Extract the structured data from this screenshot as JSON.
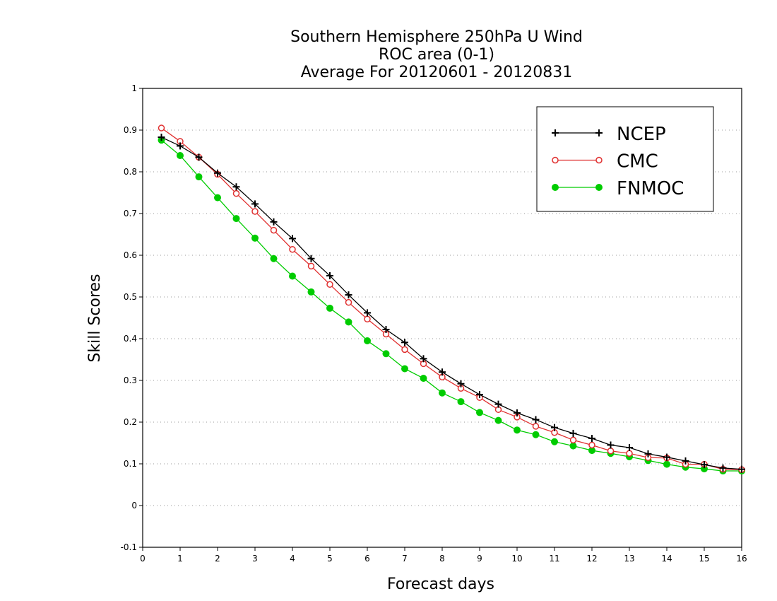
{
  "chart_data": {
    "type": "line",
    "title": [
      "Southern Hemisphere 250hPa U Wind",
      "ROC area (0-1)",
      "Average For 20120601 - 20120831"
    ],
    "xlabel": "Forecast days",
    "ylabel": "Skill Scores",
    "xlim": [
      0,
      16
    ],
    "ylim": [
      -0.1,
      1
    ],
    "xticks": [
      "0",
      "1",
      "2",
      "3",
      "4",
      "5",
      "6",
      "7",
      "8",
      "9",
      "10",
      "11",
      "12",
      "13",
      "14",
      "15",
      "16"
    ],
    "yticks": [
      "-0.1",
      "0",
      "0.1",
      "0.2",
      "0.3",
      "0.4",
      "0.5",
      "0.6",
      "0.7",
      "0.8",
      "0.9",
      "1"
    ],
    "grid": "horizontal dotted",
    "legend_position": "top-right",
    "x": [
      0.5,
      1,
      1.5,
      2,
      2.5,
      3,
      3.5,
      4,
      4.5,
      5,
      5.5,
      6,
      6.5,
      7,
      7.5,
      8,
      8.5,
      9,
      9.5,
      10,
      10.5,
      11,
      11.5,
      12,
      12.5,
      13,
      13.5,
      14,
      14.5,
      15,
      15.5,
      16
    ],
    "series": [
      {
        "name": "NCEP",
        "color": "#000000",
        "marker": "plus",
        "values": [
          0.883,
          0.862,
          0.835,
          0.797,
          0.764,
          0.723,
          0.68,
          0.64,
          0.592,
          0.551,
          0.505,
          0.462,
          0.422,
          0.391,
          0.352,
          0.32,
          0.292,
          0.266,
          0.243,
          0.222,
          0.206,
          0.187,
          0.173,
          0.161,
          0.145,
          0.139,
          0.124,
          0.116,
          0.107,
          0.098,
          0.09,
          0.087
        ]
      },
      {
        "name": "CMC",
        "color": "#e03030",
        "marker": "open-circle",
        "values": [
          0.905,
          0.873,
          0.835,
          0.794,
          0.748,
          0.705,
          0.66,
          0.614,
          0.574,
          0.53,
          0.487,
          0.447,
          0.411,
          0.374,
          0.34,
          0.308,
          0.281,
          0.259,
          0.23,
          0.212,
          0.19,
          0.175,
          0.157,
          0.145,
          0.131,
          0.125,
          0.115,
          0.114,
          0.099,
          0.099,
          0.087,
          0.086
        ]
      },
      {
        "name": "FNMOC",
        "color": "#00cc00",
        "marker": "filled-circle",
        "values": [
          0.876,
          0.839,
          0.788,
          0.738,
          0.688,
          0.641,
          0.592,
          0.55,
          0.512,
          0.473,
          0.44,
          0.395,
          0.364,
          0.328,
          0.305,
          0.27,
          0.249,
          0.223,
          0.204,
          0.181,
          0.17,
          0.153,
          0.143,
          0.132,
          0.125,
          0.117,
          0.108,
          0.099,
          0.092,
          0.088,
          0.083,
          0.083
        ]
      }
    ]
  }
}
